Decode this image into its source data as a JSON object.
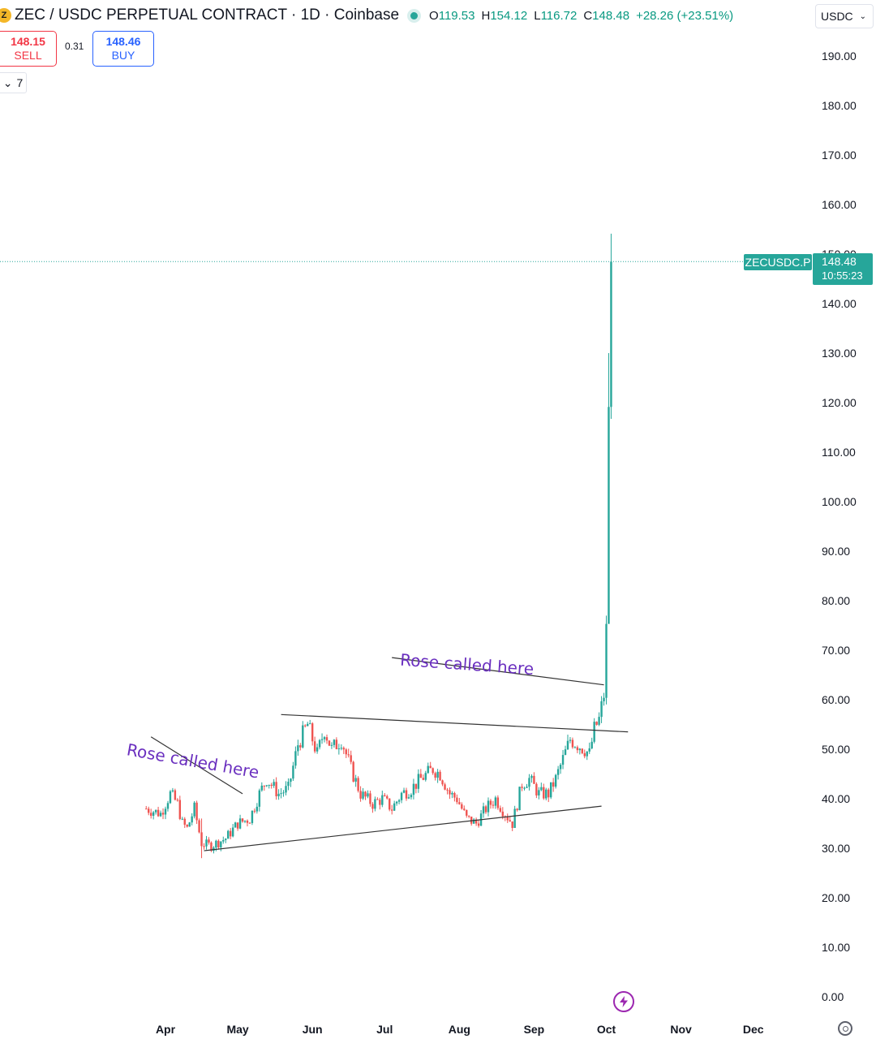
{
  "header": {
    "symbol_icon_text": "Z",
    "title": "ZEC / USDC PERPETUAL CONTRACT · 1D · Coinbase",
    "ohlc": [
      {
        "k": "O",
        "v": "119.53"
      },
      {
        "k": "H",
        "v": "154.12"
      },
      {
        "k": "L",
        "v": "116.72"
      },
      {
        "k": "C",
        "v": "148.48"
      }
    ],
    "change": "+28.26 (+23.51%)"
  },
  "trade": {
    "sell_price": "148.15",
    "sell_label": "SELL",
    "spread": "0.31",
    "buy_price": "148.46",
    "buy_label": "BUY"
  },
  "indicator_toggle": {
    "chevron": "⌄",
    "count": "7"
  },
  "currency": {
    "value": "USDC",
    "chevron": "⌄"
  },
  "last_price": {
    "symbol": "ZECUSDC.P",
    "price": "148.48",
    "countdown": "10:55:23"
  },
  "colors": {
    "up": "#26a69a",
    "down": "#ef5350",
    "annotation": "#6a2fbf",
    "line": "#333333"
  },
  "icons": {
    "flash": "flash-icon",
    "settings": "gear-icon"
  },
  "chart_data": {
    "type": "candlestick",
    "timeframe": "1D",
    "ylim": [
      0,
      195
    ],
    "y_ticks": [
      "190.00",
      "180.00",
      "170.00",
      "160.00",
      "150.00",
      "140.00",
      "130.00",
      "120.00",
      "110.00",
      "100.00",
      "90.00",
      "80.00",
      "70.00",
      "60.00",
      "50.00",
      "40.00",
      "30.00",
      "20.00",
      "10.00",
      "0.00"
    ],
    "x_ticks": [
      "Apr",
      "May",
      "Jun",
      "Jul",
      "Aug",
      "Sep",
      "Oct",
      "Nov",
      "Dec"
    ],
    "x_range": [
      "2025-03-25",
      "2025-12-31"
    ],
    "x_tick_dates": [
      "2025-04-01",
      "2025-05-01",
      "2025-06-01",
      "2025-07-01",
      "2025-08-01",
      "2025-09-01",
      "2025-10-01",
      "2025-11-01",
      "2025-12-01"
    ],
    "start_date": "2025-03-24",
    "close_keypoints": [
      [
        "2025-03-24",
        38
      ],
      [
        "2025-03-30",
        37
      ],
      [
        "2025-04-03",
        41
      ],
      [
        "2025-04-06",
        39
      ],
      [
        "2025-04-08",
        35
      ],
      [
        "2025-04-10",
        34
      ],
      [
        "2025-04-13",
        38
      ],
      [
        "2025-04-16",
        31
      ],
      [
        "2025-04-20",
        30.5
      ],
      [
        "2025-04-26",
        32
      ],
      [
        "2025-05-01",
        35
      ],
      [
        "2025-05-06",
        36
      ],
      [
        "2025-05-10",
        41
      ],
      [
        "2025-05-13",
        44
      ],
      [
        "2025-05-18",
        41
      ],
      [
        "2025-05-22",
        42
      ],
      [
        "2025-05-26",
        51
      ],
      [
        "2025-05-30",
        55
      ],
      [
        "2025-06-03",
        49
      ],
      [
        "2025-06-06",
        54
      ],
      [
        "2025-06-09",
        50
      ],
      [
        "2025-06-13",
        52
      ],
      [
        "2025-06-17",
        46
      ],
      [
        "2025-06-21",
        41
      ],
      [
        "2025-06-26",
        39
      ],
      [
        "2025-06-30",
        40
      ],
      [
        "2025-07-04",
        38
      ],
      [
        "2025-07-08",
        41
      ],
      [
        "2025-07-12",
        42
      ],
      [
        "2025-07-16",
        44
      ],
      [
        "2025-07-21",
        46
      ],
      [
        "2025-07-24",
        45
      ],
      [
        "2025-07-28",
        41
      ],
      [
        "2025-07-31",
        40
      ],
      [
        "2025-08-04",
        36
      ],
      [
        "2025-08-08",
        35
      ],
      [
        "2025-08-12",
        38
      ],
      [
        "2025-08-16",
        40
      ],
      [
        "2025-08-20",
        37
      ],
      [
        "2025-08-23",
        35
      ],
      [
        "2025-08-27",
        43
      ],
      [
        "2025-08-30",
        44
      ],
      [
        "2025-09-03",
        41
      ],
      [
        "2025-09-07",
        41
      ],
      [
        "2025-09-10",
        44
      ],
      [
        "2025-09-13",
        48
      ],
      [
        "2025-09-16",
        52
      ],
      [
        "2025-09-19",
        51
      ],
      [
        "2025-09-22",
        50
      ],
      [
        "2025-09-24",
        49
      ],
      [
        "2025-09-26",
        54
      ],
      [
        "2025-09-28",
        56
      ],
      [
        "2025-09-30",
        61
      ],
      [
        "2025-10-01",
        74
      ],
      [
        "2025-10-02",
        120
      ],
      [
        "2025-10-03",
        148.48
      ]
    ],
    "candle_hl": {
      "2025-04-16": [
        28,
        36
      ],
      "2025-10-02": [
        78,
        130
      ],
      "2025-10-03": [
        116.72,
        154.12
      ]
    },
    "last_price": 148.48,
    "trendlines": [
      {
        "from": [
          "2025-03-26",
          52.5
        ],
        "to": [
          "2025-05-03",
          41
        ]
      },
      {
        "from": [
          "2025-04-17",
          29.5
        ],
        "to": [
          "2025-09-29",
          38.5
        ]
      },
      {
        "from": [
          "2025-05-19",
          57
        ],
        "to": [
          "2025-10-10",
          53.5
        ]
      },
      {
        "from": [
          "2025-07-04",
          68.5
        ],
        "to": [
          "2025-09-30",
          63
        ]
      }
    ],
    "annotations": [
      {
        "text": "Rose called here",
        "at": [
          "2025-04-12",
          46.5
        ],
        "angle": 10
      },
      {
        "text": "Rose called here",
        "at": [
          "2025-08-04",
          66
        ],
        "angle": 4
      }
    ]
  }
}
